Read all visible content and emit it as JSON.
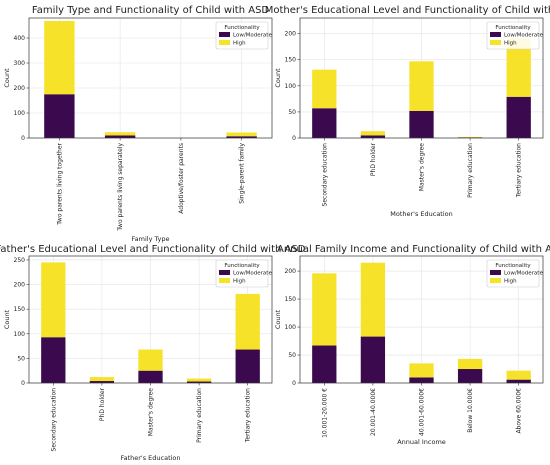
{
  "chart_data": [
    {
      "type": "bar",
      "stacked": true,
      "title": "Family Type and Functionality of Child with ASD",
      "xlabel": "Family Type",
      "ylabel": "Count",
      "categories": [
        "Two parents living together",
        "Two parents living separately",
        "Adoptive/foster parents",
        "Single-parent family"
      ],
      "series": [
        {
          "name": "Low/Moderate",
          "values": [
            175,
            10,
            0,
            7
          ]
        },
        {
          "name": "High",
          "values": [
            293,
            13,
            0,
            15
          ]
        }
      ],
      "ylim": [
        0,
        480
      ],
      "yticks": [
        0,
        100,
        200,
        300,
        400
      ],
      "legend_title": "Functionality",
      "legend_position": "top-right",
      "grid": true
    },
    {
      "type": "bar",
      "stacked": true,
      "title": "Mother's Educational Level and Functionality of Child with ASD",
      "xlabel": "Mother's Education",
      "ylabel": "Count",
      "categories": [
        "Secondary education",
        "PhD holder",
        "Master's degree",
        "Primary education",
        "Tertiary education"
      ],
      "series": [
        {
          "name": "Low/Moderate",
          "values": [
            57,
            5,
            52,
            1,
            79
          ]
        },
        {
          "name": "High",
          "values": [
            74,
            8,
            95,
            1,
            111
          ]
        }
      ],
      "ylim": [
        0,
        230
      ],
      "yticks": [
        0,
        50,
        100,
        150,
        200
      ],
      "legend_title": "Functionality",
      "legend_position": "top-right",
      "grid": true
    },
    {
      "type": "bar",
      "stacked": true,
      "title": "Father's Educational Level and Functionality of Child with ASD",
      "xlabel": "Father's Education",
      "ylabel": "Count",
      "categories": [
        "Secondary education",
        "PhD holder",
        "Master's degree",
        "Primary education",
        "Tertiary education"
      ],
      "series": [
        {
          "name": "Low/Moderate",
          "values": [
            93,
            4,
            25,
            3,
            68
          ]
        },
        {
          "name": "High",
          "values": [
            152,
            8,
            43,
            6,
            113
          ]
        }
      ],
      "ylim": [
        0,
        258
      ],
      "yticks": [
        0,
        50,
        100,
        150,
        200,
        250
      ],
      "legend_title": "Functionality",
      "legend_position": "top-right",
      "grid": true
    },
    {
      "type": "bar",
      "stacked": true,
      "title": "Annual Family Income and Functionality of Child with ASD",
      "xlabel": "Annual Income",
      "ylabel": "Count",
      "categories": [
        "10.001-20.000 €",
        "20.001-40.000€",
        "40.001-60.000€",
        "Below 10.000€",
        "Above 60.000€"
      ],
      "series": [
        {
          "name": "Low/Moderate",
          "values": [
            67,
            83,
            10,
            25,
            6
          ]
        },
        {
          "name": "High",
          "values": [
            129,
            132,
            25,
            18,
            16
          ]
        }
      ],
      "ylim": [
        0,
        227
      ],
      "yticks": [
        0,
        50,
        100,
        150,
        200
      ],
      "legend_title": "Functionality",
      "legend_position": "top-right",
      "grid": true
    }
  ],
  "colors": {
    "Low/Moderate": "#3b0a4e",
    "High": "#f7e22a"
  }
}
